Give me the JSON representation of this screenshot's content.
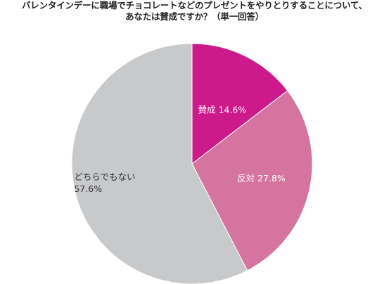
{
  "title": {
    "line1": "バレンタインデーに職場でチョコレートなどのプレゼントをやりとりすることについて、",
    "line2": "あなたは賛成ですか？（単一回答）"
  },
  "chart_data": {
    "type": "pie",
    "title": "バレンタインデーに職場でチョコレートなどのプレゼントをやりとりすることについて、あなたは賛成ですか？（単一回答）",
    "slices": [
      {
        "label": "賛成",
        "value": 14.6,
        "display": "14.6%",
        "color": "#cc1a8a",
        "text_color": "#ffffff"
      },
      {
        "label": "反対",
        "value": 27.8,
        "display": "27.8%",
        "color": "#d4749f",
        "text_color": "#ffffff"
      },
      {
        "label": "どちらでもない",
        "value": 57.6,
        "display": "57.6%",
        "color": "#c8c9cb",
        "text_color": "#333333"
      }
    ],
    "start": "12 o'clock",
    "direction": "clockwise"
  }
}
